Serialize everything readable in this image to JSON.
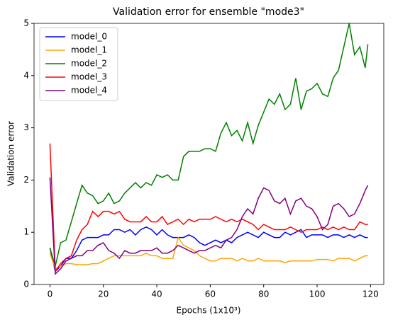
{
  "chart_data": {
    "type": "line",
    "title": "Validation error for ensemble \"mode3\"",
    "x_label": "Epochs (1x10³)",
    "y_label": "Validation error",
    "x": [
      0,
      2,
      4,
      6,
      8,
      10,
      12,
      14,
      16,
      18,
      20,
      22,
      24,
      26,
      28,
      30,
      32,
      34,
      36,
      38,
      40,
      42,
      44,
      46,
      48,
      50,
      52,
      54,
      56,
      58,
      60,
      62,
      64,
      66,
      68,
      70,
      72,
      74,
      76,
      78,
      80,
      82,
      84,
      86,
      88,
      90,
      92,
      94,
      96,
      98,
      100,
      102,
      104,
      106,
      108,
      110,
      112,
      114,
      116,
      118,
      119
    ],
    "series": [
      {
        "name": "model_0",
        "color": "#0000ff",
        "values": [
          0.7,
          0.25,
          0.35,
          0.5,
          0.5,
          0.65,
          0.85,
          0.9,
          0.9,
          0.9,
          0.95,
          0.95,
          1.05,
          1.05,
          1.0,
          1.05,
          0.95,
          1.05,
          1.1,
          1.05,
          0.95,
          1.05,
          0.95,
          0.9,
          0.9,
          0.9,
          0.95,
          0.9,
          0.8,
          0.75,
          0.8,
          0.85,
          0.8,
          0.85,
          0.8,
          0.9,
          0.95,
          1.0,
          0.95,
          0.9,
          1.0,
          0.95,
          0.9,
          0.9,
          1.0,
          0.95,
          1.0,
          1.05,
          0.9,
          0.95,
          0.95,
          0.95,
          0.9,
          0.95,
          0.95,
          0.9,
          0.95,
          0.9,
          0.95,
          0.9,
          0.9
        ]
      },
      {
        "name": "model_1",
        "color": "#ffa500",
        "values": [
          0.6,
          0.3,
          0.35,
          0.4,
          0.4,
          0.38,
          0.38,
          0.38,
          0.4,
          0.4,
          0.45,
          0.5,
          0.55,
          0.55,
          0.55,
          0.55,
          0.55,
          0.55,
          0.6,
          0.55,
          0.55,
          0.5,
          0.5,
          0.5,
          0.9,
          0.75,
          0.7,
          0.65,
          0.55,
          0.5,
          0.45,
          0.45,
          0.5,
          0.5,
          0.5,
          0.45,
          0.5,
          0.45,
          0.45,
          0.5,
          0.45,
          0.45,
          0.45,
          0.45,
          0.42,
          0.45,
          0.45,
          0.45,
          0.45,
          0.45,
          0.48,
          0.48,
          0.48,
          0.45,
          0.5,
          0.5,
          0.5,
          0.45,
          0.5,
          0.55,
          0.55
        ]
      },
      {
        "name": "model_2",
        "color": "#008000",
        "values": [
          0.7,
          0.35,
          0.8,
          0.85,
          1.2,
          1.55,
          1.9,
          1.75,
          1.7,
          1.55,
          1.6,
          1.75,
          1.55,
          1.6,
          1.75,
          1.85,
          1.95,
          1.85,
          1.95,
          1.9,
          2.1,
          2.05,
          2.1,
          2.0,
          2.0,
          2.45,
          2.55,
          2.55,
          2.55,
          2.6,
          2.6,
          2.55,
          2.9,
          3.1,
          2.85,
          2.95,
          2.75,
          3.1,
          2.7,
          3.05,
          3.3,
          3.55,
          3.45,
          3.65,
          3.35,
          3.45,
          3.95,
          3.35,
          3.7,
          3.75,
          3.85,
          3.65,
          3.6,
          3.95,
          4.1,
          4.55,
          5.0,
          4.4,
          4.55,
          4.15,
          4.6
        ]
      },
      {
        "name": "model_3",
        "color": "#ff0000",
        "values": [
          2.7,
          0.25,
          0.4,
          0.5,
          0.55,
          0.85,
          1.05,
          1.15,
          1.4,
          1.3,
          1.4,
          1.4,
          1.35,
          1.4,
          1.25,
          1.2,
          1.2,
          1.2,
          1.3,
          1.2,
          1.2,
          1.3,
          1.15,
          1.2,
          1.25,
          1.15,
          1.25,
          1.2,
          1.25,
          1.25,
          1.25,
          1.3,
          1.25,
          1.2,
          1.25,
          1.2,
          1.25,
          1.2,
          1.15,
          1.05,
          1.15,
          1.1,
          1.05,
          1.05,
          1.05,
          1.1,
          1.05,
          1.0,
          1.05,
          1.05,
          1.05,
          1.1,
          1.05,
          1.1,
          1.05,
          1.1,
          1.05,
          1.05,
          1.2,
          1.15,
          1.15
        ]
      },
      {
        "name": "model_4",
        "color": "#800080",
        "values": [
          2.05,
          0.2,
          0.3,
          0.45,
          0.5,
          0.55,
          0.55,
          0.65,
          0.65,
          0.75,
          0.8,
          0.65,
          0.6,
          0.5,
          0.65,
          0.6,
          0.6,
          0.65,
          0.65,
          0.65,
          0.7,
          0.6,
          0.6,
          0.65,
          0.75,
          0.7,
          0.65,
          0.6,
          0.65,
          0.65,
          0.7,
          0.75,
          0.7,
          0.85,
          0.9,
          1.05,
          1.3,
          1.45,
          1.35,
          1.65,
          1.85,
          1.8,
          1.6,
          1.55,
          1.65,
          1.35,
          1.6,
          1.65,
          1.5,
          1.45,
          1.3,
          1.05,
          1.15,
          1.5,
          1.55,
          1.45,
          1.3,
          1.35,
          1.55,
          1.8,
          1.9
        ]
      }
    ],
    "xlim": [
      -5.95,
      124.95
    ],
    "xticks": [
      0,
      20,
      40,
      60,
      80,
      100,
      120
    ],
    "ylim": [
      0,
      5
    ],
    "yticks": [
      0,
      1,
      2,
      3,
      4,
      5
    ],
    "legend": "upper left",
    "grid": false
  }
}
